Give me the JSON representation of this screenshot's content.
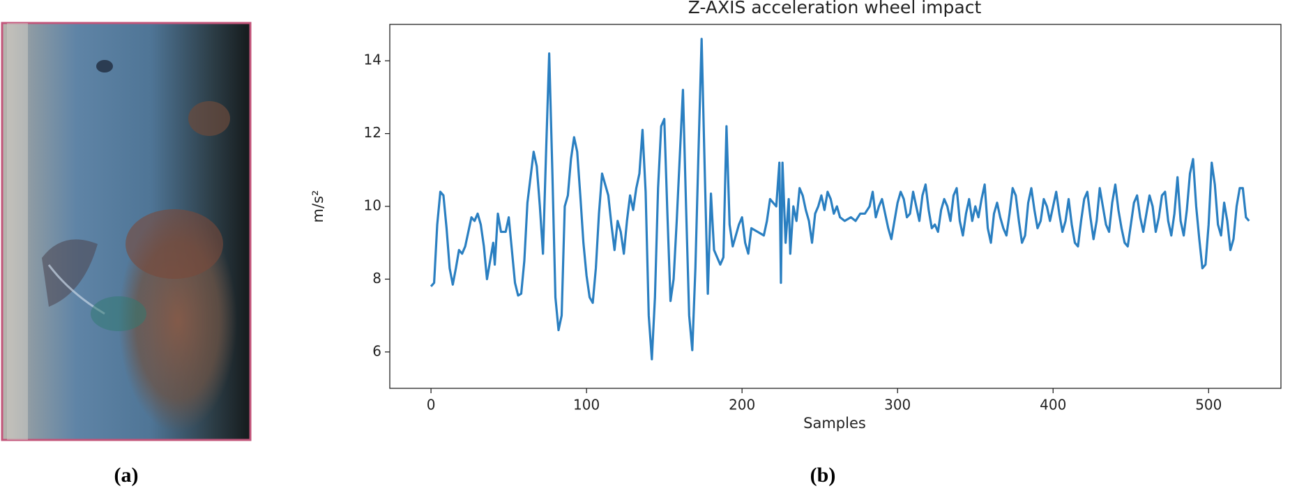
{
  "chart_data": {
    "type": "line",
    "title": "Z-AXIS acceleration wheel impact",
    "x_label": "Samples",
    "y_label": "m/s²",
    "color": "#2a7fc1",
    "xlim": [
      -26.5,
      546.5
    ],
    "ylim": [
      5,
      15
    ],
    "xticks": [
      0,
      100,
      200,
      300,
      400,
      500
    ],
    "yticks": [
      6,
      8,
      10,
      12,
      14
    ],
    "grid": false,
    "x": [
      0,
      2,
      4,
      6,
      8,
      10,
      12,
      14,
      16,
      18,
      20,
      22,
      24,
      26,
      28,
      30,
      32,
      34,
      36,
      38,
      40,
      41,
      43,
      45,
      48,
      50,
      52,
      54,
      56,
      58,
      60,
      62,
      64,
      66,
      68,
      70,
      72,
      74,
      76,
      78,
      80,
      82,
      84,
      86,
      88,
      90,
      92,
      94,
      96,
      98,
      100,
      102,
      104,
      106,
      108,
      110,
      112,
      114,
      116,
      118,
      120,
      122,
      124,
      126,
      128,
      130,
      132,
      134,
      136,
      138,
      140,
      142,
      144,
      146,
      148,
      150,
      152,
      154,
      156,
      158,
      160,
      162,
      164,
      166,
      168,
      170,
      172,
      174,
      176,
      178,
      180,
      182,
      184,
      186,
      188,
      190,
      192,
      194,
      196,
      198,
      200,
      202,
      204,
      206,
      210,
      214,
      216,
      218,
      220,
      222,
      224,
      225,
      226,
      228,
      230,
      231,
      233,
      235,
      237,
      239,
      241,
      243,
      245,
      247,
      249,
      251,
      253,
      255,
      257,
      259,
      261,
      263,
      266,
      270,
      273,
      276,
      279,
      282,
      284,
      286,
      288,
      290,
      292,
      294,
      296,
      298,
      300,
      302,
      304,
      306,
      308,
      310,
      312,
      314,
      316,
      318,
      320,
      322,
      324,
      326,
      328,
      330,
      332,
      334,
      336,
      338,
      340,
      342,
      344,
      346,
      348,
      350,
      352,
      354,
      356,
      358,
      360,
      362,
      364,
      366,
      368,
      370,
      372,
      374,
      376,
      378,
      380,
      382,
      384,
      386,
      388,
      390,
      392,
      394,
      396,
      398,
      400,
      402,
      404,
      406,
      408,
      410,
      412,
      414,
      416,
      418,
      420,
      422,
      424,
      426,
      428,
      430,
      432,
      434,
      436,
      438,
      440,
      442,
      444,
      446,
      448,
      450,
      452,
      454,
      456,
      458,
      460,
      462,
      464,
      466,
      468,
      470,
      472,
      474,
      476,
      478,
      480,
      482,
      484,
      486,
      488,
      490,
      492,
      494,
      496,
      498,
      500,
      502,
      504,
      506,
      508,
      510,
      512,
      514,
      516,
      518,
      520,
      522,
      524,
      526
    ],
    "values": [
      7.8,
      7.9,
      9.5,
      10.4,
      10.3,
      9.4,
      8.3,
      7.85,
      8.3,
      8.8,
      8.7,
      8.9,
      9.3,
      9.7,
      9.6,
      9.8,
      9.5,
      8.9,
      8.0,
      8.5,
      9.0,
      8.4,
      9.8,
      9.3,
      9.3,
      9.7,
      8.8,
      7.9,
      7.55,
      7.6,
      8.5,
      10.1,
      10.8,
      11.5,
      11.1,
      10.0,
      8.7,
      11.5,
      14.2,
      11.0,
      7.5,
      6.6,
      7.0,
      10.0,
      10.3,
      11.3,
      11.9,
      11.5,
      10.3,
      9.0,
      8.1,
      7.5,
      7.35,
      8.3,
      9.8,
      10.9,
      10.6,
      10.3,
      9.5,
      8.8,
      9.6,
      9.3,
      8.7,
      9.6,
      10.3,
      9.9,
      10.5,
      10.9,
      12.1,
      10.4,
      7.0,
      5.8,
      7.5,
      10.5,
      12.2,
      12.4,
      9.8,
      7.4,
      8.0,
      9.6,
      11.4,
      13.2,
      10.0,
      7.0,
      6.05,
      8.3,
      11.5,
      14.6,
      11.0,
      7.6,
      10.35,
      8.8,
      8.6,
      8.4,
      8.6,
      12.2,
      9.5,
      8.9,
      9.2,
      9.5,
      9.7,
      9.0,
      8.7,
      9.4,
      9.3,
      9.2,
      9.6,
      10.2,
      10.1,
      10.0,
      11.2,
      7.9,
      11.2,
      9.0,
      10.2,
      8.7,
      10.0,
      9.6,
      10.5,
      10.3,
      9.9,
      9.6,
      9.0,
      9.8,
      10.0,
      10.3,
      9.9,
      10.4,
      10.2,
      9.8,
      10.0,
      9.7,
      9.6,
      9.7,
      9.6,
      9.8,
      9.8,
      10.0,
      10.4,
      9.7,
      10.0,
      10.2,
      9.8,
      9.4,
      9.1,
      9.6,
      10.1,
      10.4,
      10.2,
      9.7,
      9.8,
      10.4,
      10.0,
      9.6,
      10.3,
      10.6,
      9.9,
      9.4,
      9.5,
      9.3,
      9.9,
      10.2,
      10.0,
      9.6,
      10.3,
      10.5,
      9.6,
      9.2,
      9.8,
      10.2,
      9.6,
      10.0,
      9.7,
      10.2,
      10.6,
      9.4,
      9.0,
      9.8,
      10.1,
      9.7,
      9.4,
      9.2,
      9.8,
      10.5,
      10.3,
      9.6,
      9.0,
      9.2,
      10.1,
      10.5,
      9.9,
      9.4,
      9.6,
      10.2,
      10.0,
      9.6,
      10.0,
      10.4,
      9.8,
      9.3,
      9.6,
      10.2,
      9.5,
      9.0,
      8.9,
      9.6,
      10.2,
      10.4,
      9.7,
      9.1,
      9.6,
      10.5,
      10.0,
      9.5,
      9.3,
      10.1,
      10.6,
      9.9,
      9.4,
      9.0,
      8.9,
      9.5,
      10.1,
      10.3,
      9.7,
      9.3,
      9.8,
      10.3,
      10.0,
      9.3,
      9.7,
      10.3,
      10.4,
      9.6,
      9.2,
      9.8,
      10.8,
      9.6,
      9.2,
      9.9,
      10.9,
      11.3,
      10.0,
      9.1,
      8.3,
      8.4,
      9.5,
      11.2,
      10.6,
      9.5,
      9.2,
      10.1,
      9.6,
      8.8,
      9.1,
      10.0,
      10.5,
      10.5,
      9.7,
      9.6
    ]
  },
  "captions": [
    "(a)",
    "(b)"
  ]
}
